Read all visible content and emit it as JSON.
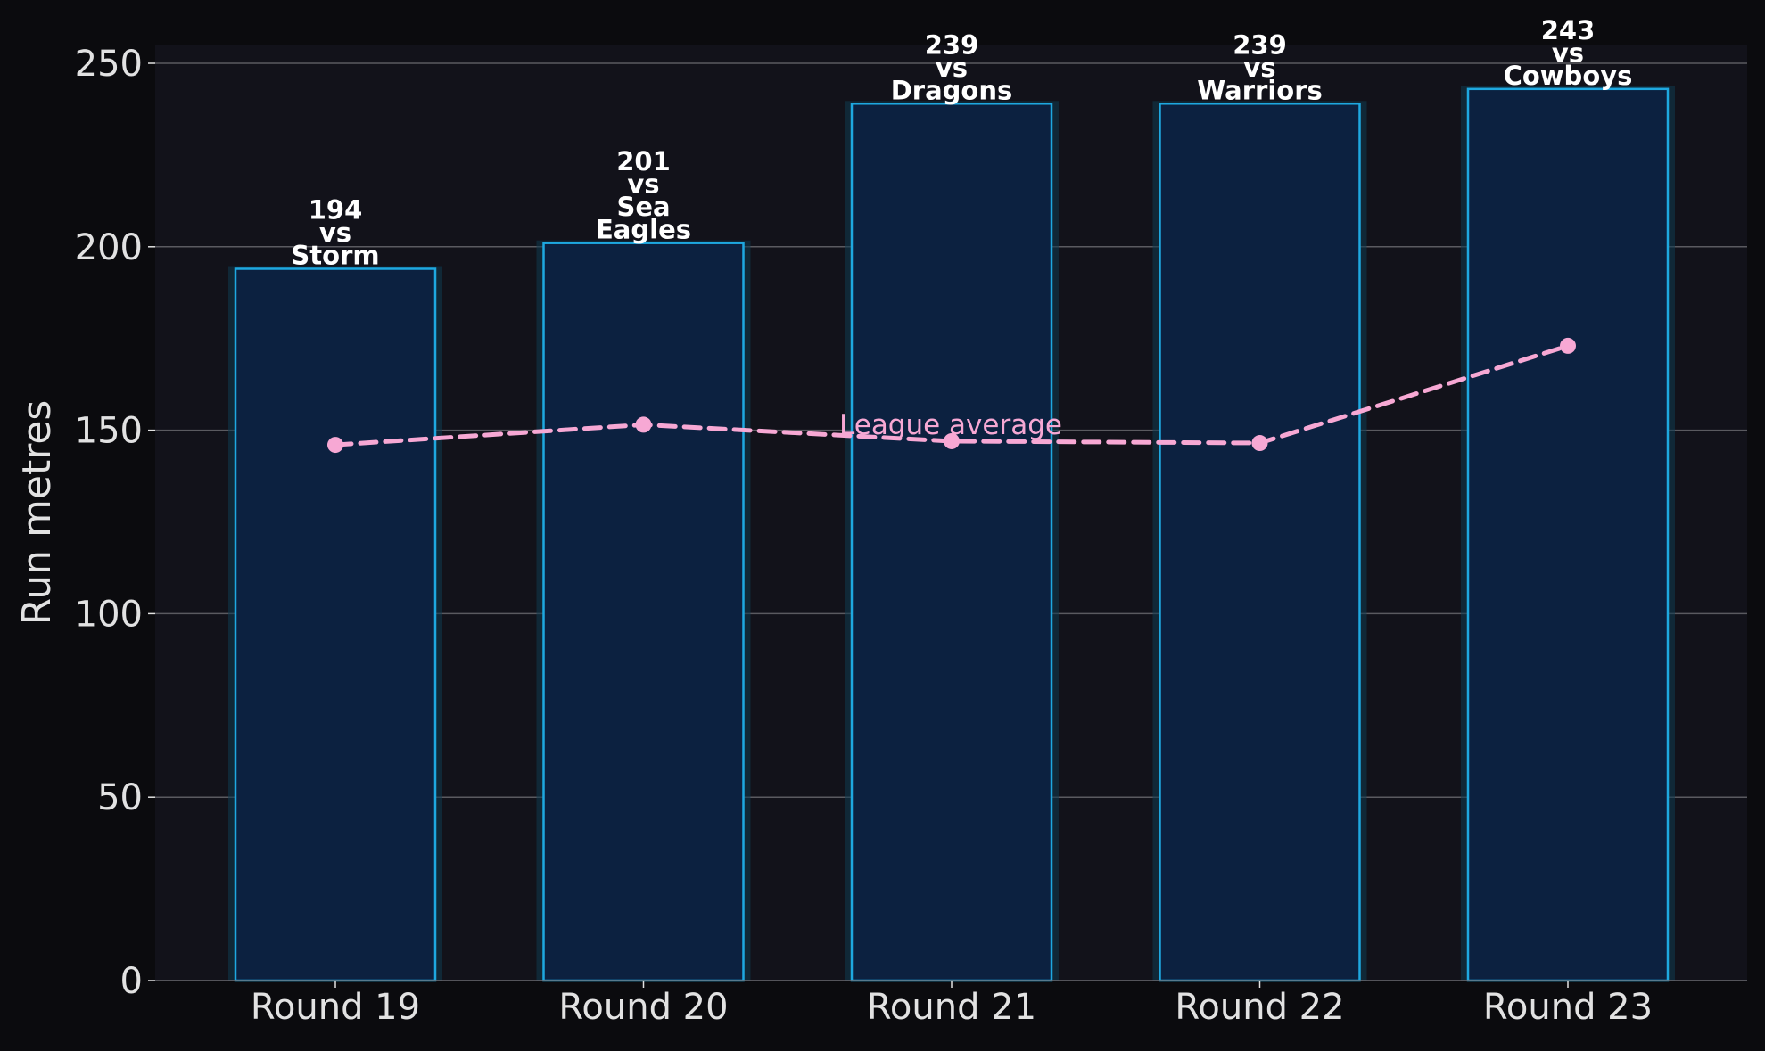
{
  "chart_data": {
    "type": "bar",
    "categories": [
      "Round 19",
      "Round 20",
      "Round 21",
      "Round 22",
      "Round 23"
    ],
    "values": [
      194,
      201,
      239,
      239,
      243
    ],
    "bar_labels": [
      [
        "194",
        "vs",
        "Storm"
      ],
      [
        "201",
        "vs",
        "Sea",
        "Eagles"
      ],
      [
        "239",
        "vs",
        "Dragons"
      ],
      [
        "239",
        "vs",
        "Warriors"
      ],
      [
        "243",
        "vs",
        "Cowboys"
      ]
    ],
    "line_series": {
      "label": "League average",
      "values": [
        146,
        151.5,
        147,
        146.5,
        173
      ]
    },
    "ylabel": "Run metres",
    "xlabel": "",
    "ylim": [
      0,
      255
    ],
    "yticks": [
      "0",
      "50",
      "100",
      "150",
      "200",
      "250"
    ],
    "grid": true,
    "colors": {
      "page_background": "#0b0b0e",
      "plot_background": "#12121a",
      "bar_fill": "#0c2140",
      "bar_edge": "#1ea8e0",
      "bar_glow": "#0f3a50",
      "grid": "#5a5a60",
      "line": "#f7a8d4",
      "text": "#e2e2e2"
    }
  }
}
